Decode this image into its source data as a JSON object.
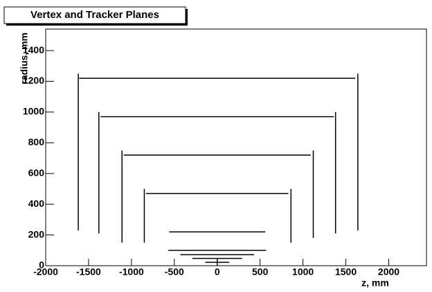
{
  "chart_data": {
    "type": "segments",
    "title": "Vertex and Tracker Planes",
    "x_label": "z, mm",
    "y_label": "radius, mm",
    "xlim": [
      -2000,
      2440
    ],
    "ylim": [
      0,
      1540
    ],
    "xticks": [
      -2000,
      -1500,
      -1000,
      -500,
      0,
      500,
      1000,
      1500,
      2000
    ],
    "yticks": [
      0,
      200,
      400,
      600,
      800,
      1000,
      1200,
      1400
    ],
    "color": "#000000",
    "segments": [
      {
        "z": [
          -1610,
          1610
        ],
        "r": [
          1220,
          1220
        ]
      },
      {
        "z": [
          -1360,
          1360
        ],
        "r": [
          970,
          970
        ]
      },
      {
        "z": [
          -1090,
          1090
        ],
        "r": [
          720,
          720
        ]
      },
      {
        "z": [
          -830,
          830
        ],
        "r": [
          470,
          470
        ]
      },
      {
        "z": [
          -560,
          560
        ],
        "r": [
          220,
          220
        ]
      },
      {
        "z": [
          -570,
          570
        ],
        "r": [
          100,
          100
        ]
      },
      {
        "z": [
          -430,
          430
        ],
        "r": [
          72,
          72
        ]
      },
      {
        "z": [
          -290,
          290
        ],
        "r": [
          47,
          47
        ]
      },
      {
        "z": [
          -140,
          140
        ],
        "r": [
          22,
          22
        ]
      },
      {
        "z": [
          -1620,
          -1620
        ],
        "r": [
          230,
          1250
        ]
      },
      {
        "z": [
          1640,
          1640
        ],
        "r": [
          230,
          1250
        ]
      },
      {
        "z": [
          -1380,
          -1380
        ],
        "r": [
          210,
          1000
        ]
      },
      {
        "z": [
          1380,
          1380
        ],
        "r": [
          210,
          1000
        ]
      },
      {
        "z": [
          -1110,
          -1110
        ],
        "r": [
          150,
          750
        ]
      },
      {
        "z": [
          1120,
          1120
        ],
        "r": [
          180,
          750
        ]
      },
      {
        "z": [
          -850,
          -850
        ],
        "r": [
          150,
          500
        ]
      },
      {
        "z": [
          860,
          860
        ],
        "r": [
          150,
          500
        ]
      },
      {
        "z": [
          0,
          0
        ],
        "r": [
          0,
          50
        ]
      }
    ]
  }
}
